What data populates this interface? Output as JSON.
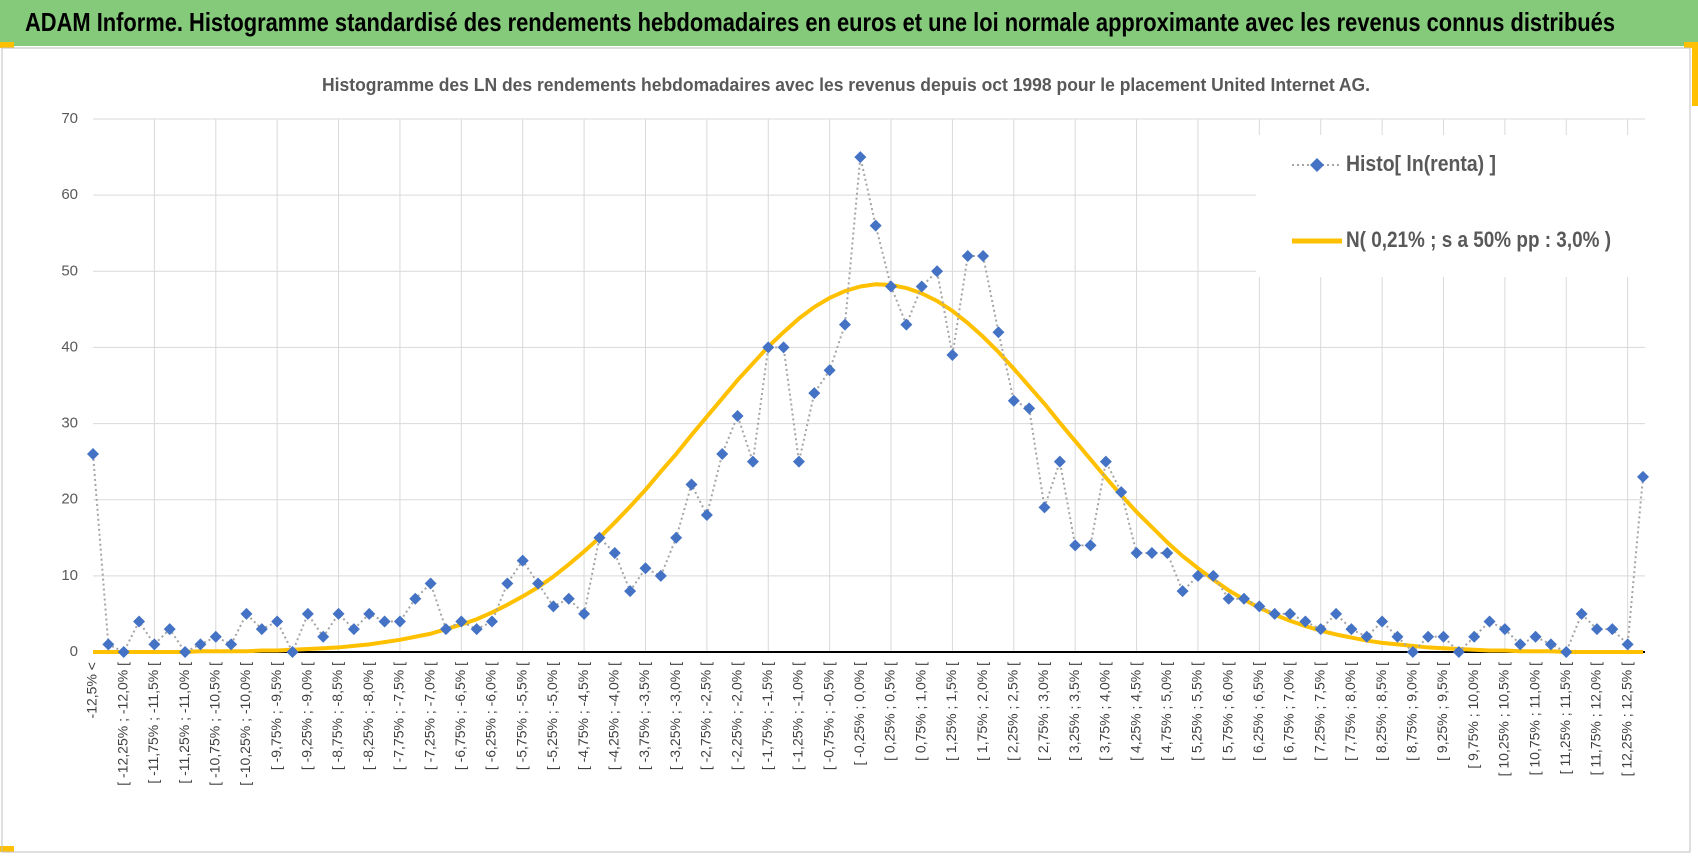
{
  "header": {
    "title": "ADAM Informe. Histogramme standardisé des rendements hebdomadaires en euros et une loi normale approximante avec les revenus connus distribués"
  },
  "chart_data": {
    "type": "line",
    "title": "Histogramme  des LN des rendements hebdomadaires avec les revenus depuis oct 1998  pour le placement United  Internet AG.",
    "categories": [
      "-12,5% <",
      null,
      "[ -12,25% ; -12,0% [",
      null,
      "[ -11,75% ; -11,5% [",
      null,
      "[ -11,25% ; -11,0% [",
      null,
      "[ -10,75% ; -10,5% [",
      null,
      "[ -10,25% ; -10,0% [",
      null,
      "[ -9,75% ; -9,5% [",
      null,
      "[ -9,25% ; -9,0% [",
      null,
      "[ -8,75% ; -8,5% [",
      null,
      "[ -8,25% ; -8,0% [",
      null,
      "[ -7,75% ; -7,5% [",
      null,
      "[ -7,25% ; -7,0% [",
      null,
      "[ -6,75% ; -6,5% [",
      null,
      "[ -6,25% ; -6,0% [",
      null,
      "[ -5,75% ; -5,5% [",
      null,
      "[ -5,25% ; -5,0% [",
      null,
      "[ -4,75% ; -4,5% [",
      null,
      "[ -4,25% ; -4,0% [",
      null,
      "[ -3,75% ; -3,5% [",
      null,
      "[ -3,25% ; -3,0% [",
      null,
      "[ -2,75% ; -2,5% [",
      null,
      "[ -2,25% ; -2,0% [",
      null,
      "[ -1,75% ; -1,5% [",
      null,
      "[ -1,25% ; -1,0% [",
      null,
      "[ -0,75% ; -0,5% [",
      null,
      "[ -0,25% ; 0,0% [",
      null,
      "[ 0,25% ; 0,5% [",
      null,
      "[ 0,75% ; 1,0% [",
      null,
      "[ 1,25% ; 1,5% [",
      null,
      "[ 1,75% ; 2,0% [",
      null,
      "[ 2,25% ; 2,5% [",
      null,
      "[ 2,75% ; 3,0% [",
      null,
      "[ 3,25% ; 3,5% [",
      null,
      "[ 3,75% ; 4,0% [",
      null,
      "[ 4,25% ; 4,5% [",
      null,
      "[ 4,75% ; 5,0% [",
      null,
      "[ 5,25% ; 5,5% [",
      null,
      "[ 5,75% ; 6,0% [",
      null,
      "[ 6,25% ; 6,5% [",
      null,
      "[ 6,75% ; 7,0% [",
      null,
      "[ 7,25% ; 7,5% [",
      null,
      "[ 7,75% ; 8,0% [",
      null,
      "[ 8,25% ; 8,5% [",
      null,
      "[ 8,75% ; 9,0% [",
      null,
      "[ 9,25% ; 9,5% [",
      null,
      "[ 9,75% ; 10,0% [",
      null,
      "[ 10,25% ; 10,5% [",
      null,
      "[ 10,75% ; 11,0% [",
      null,
      "[ 11,25% ; 11,5% [",
      null,
      "[ 11,75% ; 12,0% [",
      null,
      "[ 12,25% ; 12,5% [",
      null
    ],
    "series": [
      {
        "name": "Histo[ ln(renta) ]",
        "color": "#4472c4",
        "line_color": "#a5a5a5",
        "marker": "diamond",
        "values": [
          26,
          1,
          0,
          4,
          1,
          3,
          0,
          1,
          2,
          1,
          5,
          3,
          4,
          0,
          5,
          2,
          5,
          3,
          5,
          4,
          4,
          7,
          9,
          3,
          4,
          3,
          4,
          9,
          12,
          9,
          6,
          7,
          5,
          15,
          13,
          8,
          11,
          10,
          15,
          22,
          18,
          26,
          31,
          25,
          40,
          40,
          25,
          34,
          37,
          43,
          65,
          56,
          48,
          43,
          48,
          50,
          39,
          52,
          52,
          42,
          33,
          32,
          19,
          25,
          14,
          14,
          25,
          21,
          13,
          13,
          13,
          8,
          10,
          10,
          7,
          7,
          6,
          5,
          5,
          4,
          3,
          5,
          3,
          2,
          4,
          2,
          0,
          2,
          2,
          0,
          2,
          4,
          3,
          1,
          2,
          1,
          0,
          5,
          3,
          3,
          1,
          23
        ]
      },
      {
        "name": "N( 0,21% ; s a 50% pp : 3,0% )",
        "color": "#ffc000",
        "values": [
          0,
          0,
          0,
          0,
          0,
          0,
          0,
          0.1,
          0.1,
          0.1,
          0.1,
          0.2,
          0.2,
          0.3,
          0.4,
          0.5,
          0.6,
          0.8,
          1,
          1.3,
          1.6,
          2,
          2.4,
          3,
          3.6,
          4.3,
          5.2,
          6.2,
          7.3,
          8.5,
          9.9,
          11.5,
          13.2,
          15,
          17,
          19.1,
          21.3,
          23.7,
          26,
          28.5,
          30.9,
          33.3,
          35.7,
          37.9,
          40.1,
          42,
          43.8,
          45.3,
          46.5,
          47.4,
          48,
          48.3,
          48.2,
          47.8,
          47.1,
          46.1,
          44.8,
          43.2,
          41.4,
          39.4,
          37.2,
          34.9,
          32.6,
          30.1,
          27.7,
          25.3,
          22.9,
          20.6,
          18.4,
          16.4,
          14.4,
          12.6,
          11,
          9.5,
          8.1,
          6.9,
          5.8,
          4.9,
          4.1,
          3.4,
          2.8,
          2.3,
          1.9,
          1.5,
          1.2,
          1,
          0.8,
          0.6,
          0.5,
          0.4,
          0.3,
          0.2,
          0.2,
          0.1,
          0.1,
          0.1,
          0,
          0,
          0,
          0,
          0,
          0
        ]
      }
    ],
    "ylim": [
      0,
      70
    ],
    "yticks": [
      0,
      10,
      20,
      30,
      40,
      50,
      60,
      70
    ],
    "grid": true,
    "legend": "top-right"
  }
}
